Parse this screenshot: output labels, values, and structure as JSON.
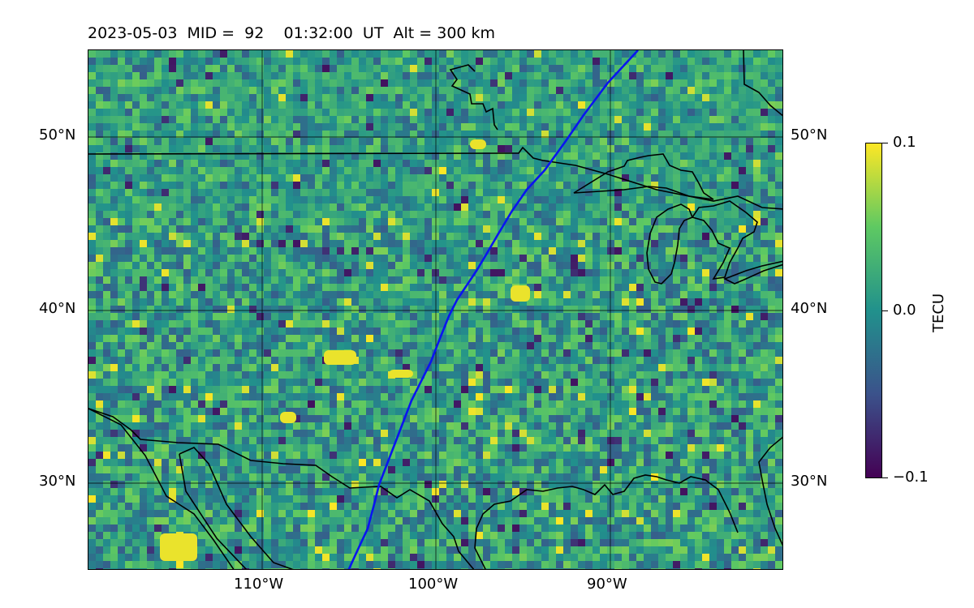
{
  "title": "2023-05-03  MID =  92    01:32:00  UT  Alt = 300 km",
  "map": {
    "lat_ticks": [
      "50°N",
      "40°N",
      "30°N"
    ],
    "lon_ticks": [
      "110°W",
      "100°W",
      "90°W"
    ],
    "track_color": "#0a14f0"
  },
  "colorbar": {
    "label": "TECU",
    "max_label": "0.1",
    "mid_label": "0.0",
    "min_label": "−0.1",
    "vmin": -0.1,
    "vmax": 0.1,
    "colormap": "viridis",
    "colors": [
      "#440154",
      "#3b528b",
      "#21918c",
      "#5ec962",
      "#fde725"
    ]
  }
}
